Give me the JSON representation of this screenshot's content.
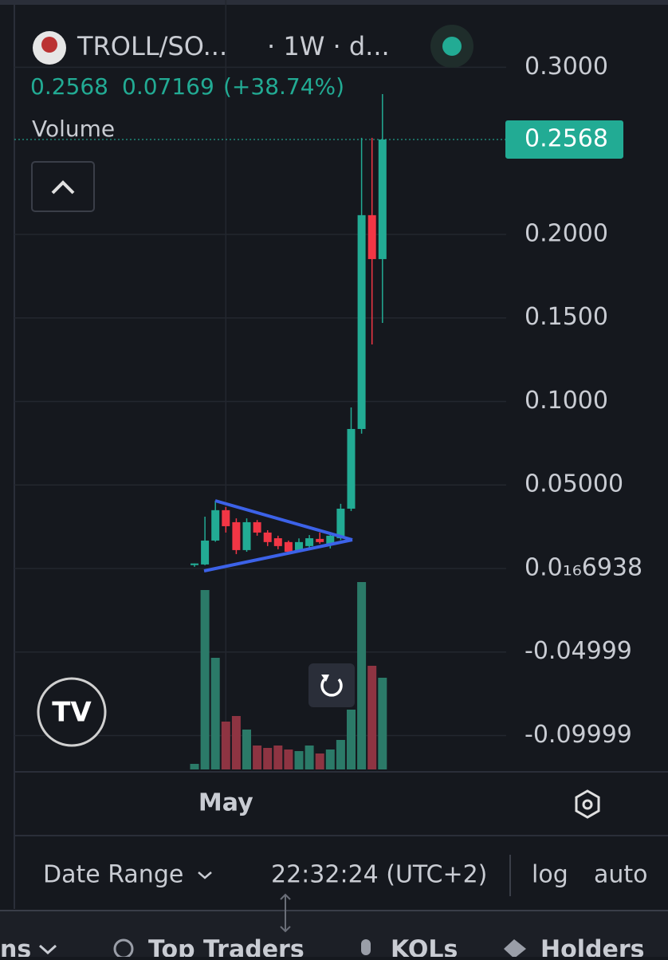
{
  "header": {
    "symbol": "TROLL/SO...",
    "interval": "· 1W · d...",
    "change": "0.07169",
    "change_pct": "(+38.74%)",
    "volume_label": "Volume"
  },
  "chart_data": {
    "type": "candlestick",
    "categories": [
      null,
      null,
      null,
      "May",
      null,
      null,
      null,
      null,
      null,
      null,
      null,
      null,
      null,
      null,
      null,
      null,
      null,
      null,
      null
    ],
    "series": [
      {
        "name": "TROLL/SOL",
        "up_color": "#22ab94",
        "down_color": "#f23645",
        "open": [
          0.002,
          0.0024,
          0.0167,
          0.0349,
          0.0277,
          0.011,
          0.0277,
          0.0215,
          0.0181,
          0.0158,
          0.011,
          0.0134,
          0.0177,
          0.0148,
          0.0181,
          0.0358,
          0.0835,
          0.2115,
          0.1852
        ],
        "high": [
          0.003,
          0.031,
          0.0406,
          0.0368,
          0.03,
          0.03,
          0.029,
          0.0229,
          0.0196,
          0.0167,
          0.018,
          0.02,
          0.0215,
          0.021,
          0.0387,
          0.0964,
          0.2578,
          0.2578,
          0.284
        ],
        "low": [
          0.001,
          0.002,
          0.016,
          0.0215,
          0.0086,
          0.01,
          0.0196,
          0.0134,
          0.0115,
          0.0086,
          0.0096,
          0.012,
          0.0148,
          0.012,
          0.017,
          0.0344,
          0.0807,
          0.1341,
          0.147
        ],
        "close": [
          0.003,
          0.0167,
          0.0349,
          0.0253,
          0.011,
          0.0277,
          0.0215,
          0.0158,
          0.0134,
          0.01,
          0.0158,
          0.0181,
          0.0158,
          0.0196,
          0.0358,
          0.0835,
          0.2115,
          0.1852,
          0.2568
        ]
      }
    ],
    "volume": {
      "name": "Volume",
      "up_color": "#2b7a68",
      "down_color": "#8e3442",
      "values": [
        7,
        225,
        140,
        60,
        67,
        50,
        30,
        27,
        30,
        25,
        23,
        30,
        20,
        25,
        37,
        75,
        235,
        130,
        115
      ]
    },
    "last_price": 0.2568,
    "ylim": [
      -0.1203,
      0.3403
    ],
    "yticks": [
      {
        "value": 0.3,
        "label": "0.3000"
      },
      {
        "value": 0.2,
        "label": "0.2000"
      },
      {
        "value": 0.15,
        "label": "0.1500"
      },
      {
        "value": 0.1,
        "label": "0.1000"
      },
      {
        "value": 0.05,
        "label": "0.05000"
      },
      {
        "value": 6.938e-17,
        "label": "0.0₁₆6938"
      },
      -0.04999,
      -0.09999
    ],
    "grid": true,
    "log_scale": false
  },
  "footer": {
    "date_range": "Date Range",
    "time": "22:32:24 (UTC+2)",
    "log": "log",
    "auto": "auto"
  },
  "tabs": [
    "ns",
    "Top Traders",
    "KOLs",
    "Holders"
  ]
}
